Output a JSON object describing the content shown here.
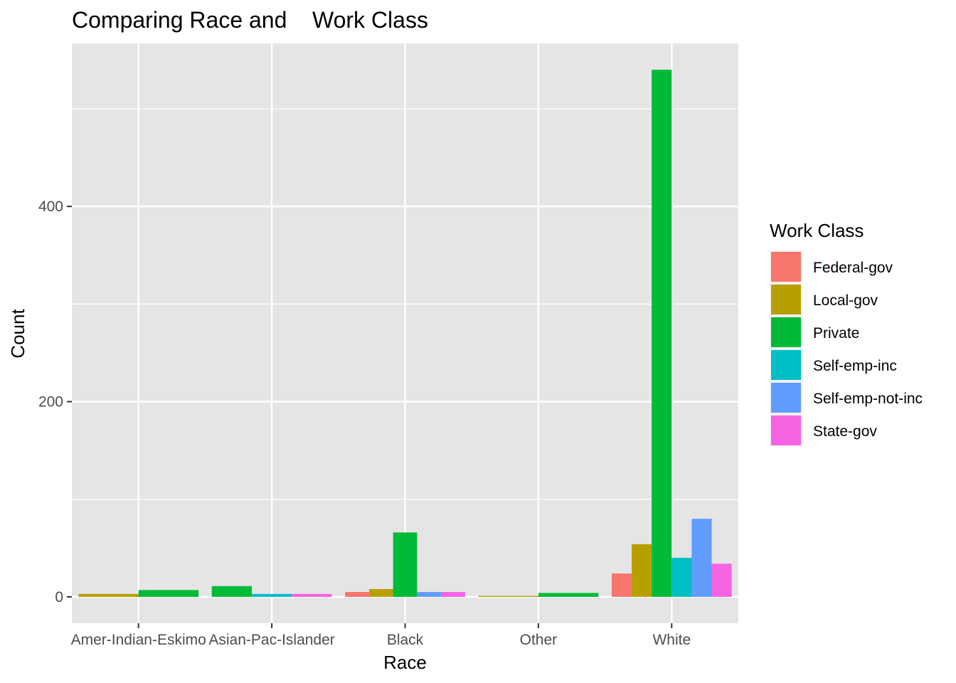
{
  "chart_data": {
    "type": "bar",
    "title": "Comparing Race and    Work Class",
    "xlabel": "Race",
    "ylabel": "Count",
    "ylim": [
      -27,
      567
    ],
    "yticks": [
      0,
      200,
      400
    ],
    "grid": true,
    "legend_position": "right",
    "legend_title": "Work Class",
    "categories": [
      "Amer-Indian-Eskimo",
      "Asian-Pac-Islander",
      "Black",
      "Other",
      "White"
    ],
    "series": [
      {
        "name": "Federal-gov",
        "color": "#F8766D",
        "values": [
          null,
          null,
          5,
          null,
          24
        ]
      },
      {
        "name": "Local-gov",
        "color": "#B79F00",
        "values": [
          3,
          null,
          8,
          1,
          54
        ]
      },
      {
        "name": "Private",
        "color": "#00BA38",
        "values": [
          7,
          11,
          66,
          4,
          540
        ]
      },
      {
        "name": "Self-emp-inc",
        "color": "#00BFC4",
        "values": [
          null,
          3,
          null,
          null,
          40
        ]
      },
      {
        "name": "Self-emp-not-inc",
        "color": "#619CFF",
        "values": [
          null,
          null,
          5,
          null,
          80
        ]
      },
      {
        "name": "State-gov",
        "color": "#F564E3",
        "values": [
          null,
          3,
          5,
          null,
          34
        ]
      }
    ]
  }
}
